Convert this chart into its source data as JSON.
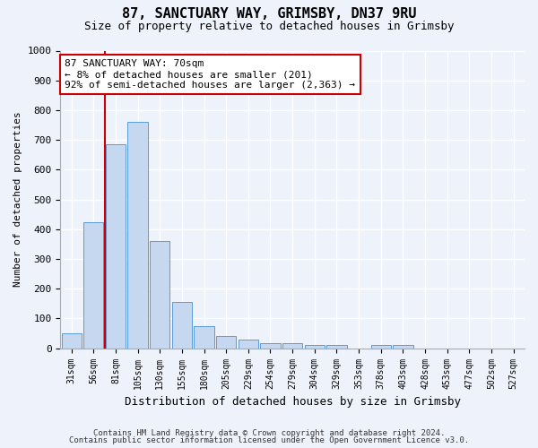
{
  "title1": "87, SANCTUARY WAY, GRIMSBY, DN37 9RU",
  "title2": "Size of property relative to detached houses in Grimsby",
  "xlabel": "Distribution of detached houses by size in Grimsby",
  "ylabel": "Number of detached properties",
  "categories": [
    "31sqm",
    "56sqm",
    "81sqm",
    "105sqm",
    "130sqm",
    "155sqm",
    "180sqm",
    "205sqm",
    "229sqm",
    "254sqm",
    "279sqm",
    "304sqm",
    "329sqm",
    "353sqm",
    "378sqm",
    "403sqm",
    "428sqm",
    "453sqm",
    "477sqm",
    "502sqm",
    "527sqm"
  ],
  "values": [
    50,
    425,
    685,
    760,
    360,
    155,
    75,
    40,
    28,
    18,
    18,
    10,
    10,
    0,
    10,
    10,
    0,
    0,
    0,
    0,
    0
  ],
  "bar_color": "#c5d8f0",
  "bar_edge_color": "#5b9bd5",
  "vline_color": "#cc0000",
  "vline_x": 1.5,
  "annotation_text": "87 SANCTUARY WAY: 70sqm\n← 8% of detached houses are smaller (201)\n92% of semi-detached houses are larger (2,363) →",
  "annotation_box_color": "#cc0000",
  "ylim": [
    0,
    1000
  ],
  "yticks": [
    0,
    100,
    200,
    300,
    400,
    500,
    600,
    700,
    800,
    900,
    1000
  ],
  "footer1": "Contains HM Land Registry data © Crown copyright and database right 2024.",
  "footer2": "Contains public sector information licensed under the Open Government Licence v3.0.",
  "background_color": "#edf2fb",
  "plot_bg_color": "#edf2fb",
  "grid_color": "#ffffff",
  "title1_fontsize": 11,
  "title2_fontsize": 9,
  "annot_fontsize": 8,
  "ylabel_fontsize": 8,
  "xlabel_fontsize": 9
}
